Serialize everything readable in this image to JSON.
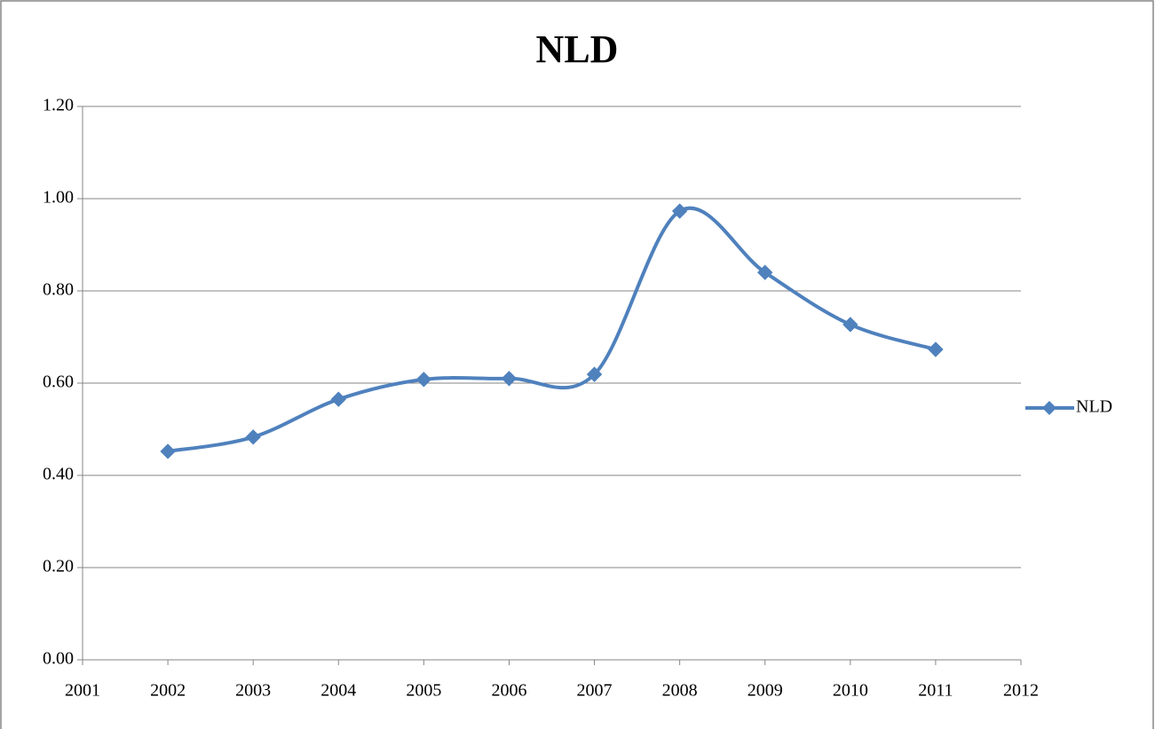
{
  "chart_data": {
    "type": "line",
    "title": "NLD",
    "x": [
      2002,
      2003,
      2004,
      2005,
      2006,
      2007,
      2008,
      2009,
      2010,
      2011
    ],
    "series": [
      {
        "name": "NLD",
        "color": "#4f81bd",
        "values": [
          0.452,
          0.483,
          0.565,
          0.608,
          0.61,
          0.619,
          0.973,
          0.84,
          0.727,
          0.673
        ]
      }
    ],
    "xlim": [
      2001,
      2012
    ],
    "xticks": [
      2001,
      2002,
      2003,
      2004,
      2005,
      2006,
      2007,
      2008,
      2009,
      2010,
      2011,
      2012
    ],
    "ylim": [
      0,
      1.2
    ],
    "yticks": [
      {
        "value": 0,
        "label": "0.00"
      },
      {
        "value": 0.2,
        "label": "0.20"
      },
      {
        "value": 0.4,
        "label": "0.40"
      },
      {
        "value": 0.6,
        "label": "0.60"
      },
      {
        "value": 0.8,
        "label": "0.80"
      },
      {
        "value": 1,
        "label": "1.00"
      },
      {
        "value": 1.2,
        "label": "1.20"
      }
    ],
    "grid": true,
    "smooth": true,
    "legend": "right"
  }
}
